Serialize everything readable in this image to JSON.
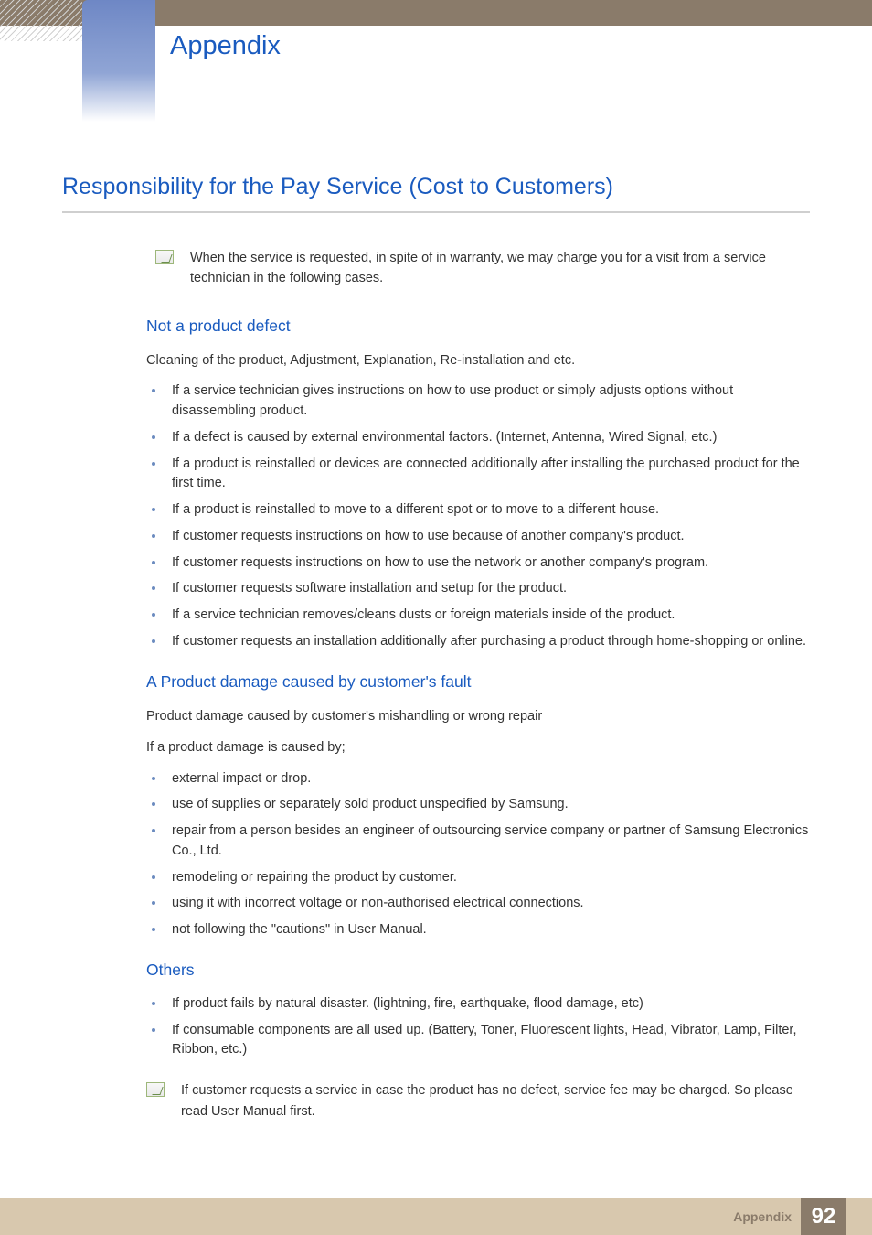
{
  "colors": {
    "heading_blue": "#1a5bbf",
    "header_band": "#8a7b6a",
    "blue_tab_top": "#6e87c5",
    "footer_band": "#d8c8ae",
    "footer_box": "#8a7b6a",
    "bullet": "#6b8bbf",
    "body_text": "#333333",
    "underline": "#cfcfcf"
  },
  "typography": {
    "appendix_title_size": 29,
    "section_title_size": 25,
    "subheading_size": 17.5,
    "body_size": 14.5
  },
  "header": {
    "chapter_label": "Appendix"
  },
  "section": {
    "title": "Responsibility for the Pay Service (Cost to Customers)",
    "top_note": "When the service is requested, in spite of in warranty, we may charge you for a visit from a service technician in the following cases."
  },
  "sub1": {
    "heading": "Not a product defect",
    "intro": "Cleaning of the product, Adjustment, Explanation, Re-installation and etc.",
    "items": [
      "If a service technician gives instructions on how to use product or simply adjusts options without disassembling product.",
      "If a defect is caused by external environmental factors. (Internet, Antenna, Wired Signal, etc.)",
      "If a product is reinstalled or devices are connected additionally after installing the purchased product for the first time.",
      "If a product is reinstalled to move to a different spot or to move to a different house.",
      "If customer requests instructions on how to use because of another company's product.",
      "If customer requests instructions on how to use the network or another company's program.",
      "If customer requests software installation and setup for the product.",
      "If a service technician removes/cleans dusts or foreign materials inside of the product.",
      "If customer requests an installation additionally after purchasing a product through home-shopping or online."
    ]
  },
  "sub2": {
    "heading": "A Product damage caused by customer's fault",
    "intro1": "Product damage caused by customer's mishandling or wrong repair",
    "intro2": "If a product damage is caused by;",
    "items": [
      "external impact or drop.",
      "use of supplies or separately sold product unspecified by Samsung.",
      "repair from a person besides an engineer of outsourcing service company or partner of Samsung Electronics Co., Ltd.",
      "remodeling or repairing the product by customer.",
      "using it with incorrect voltage or non-authorised electrical connections.",
      "not following the \"cautions\" in User Manual."
    ]
  },
  "sub3": {
    "heading": "Others",
    "items": [
      "If product fails by natural disaster. (lightning, fire, earthquake, flood damage, etc)",
      "If consumable components are all used up. (Battery, Toner, Fluorescent lights, Head, Vibrator, Lamp, Filter, Ribbon, etc.)"
    ],
    "bottom_note": "If customer requests a service in case the product has no defect, service fee may be charged. So please read User Manual first."
  },
  "footer": {
    "label": "Appendix",
    "page": "92"
  }
}
